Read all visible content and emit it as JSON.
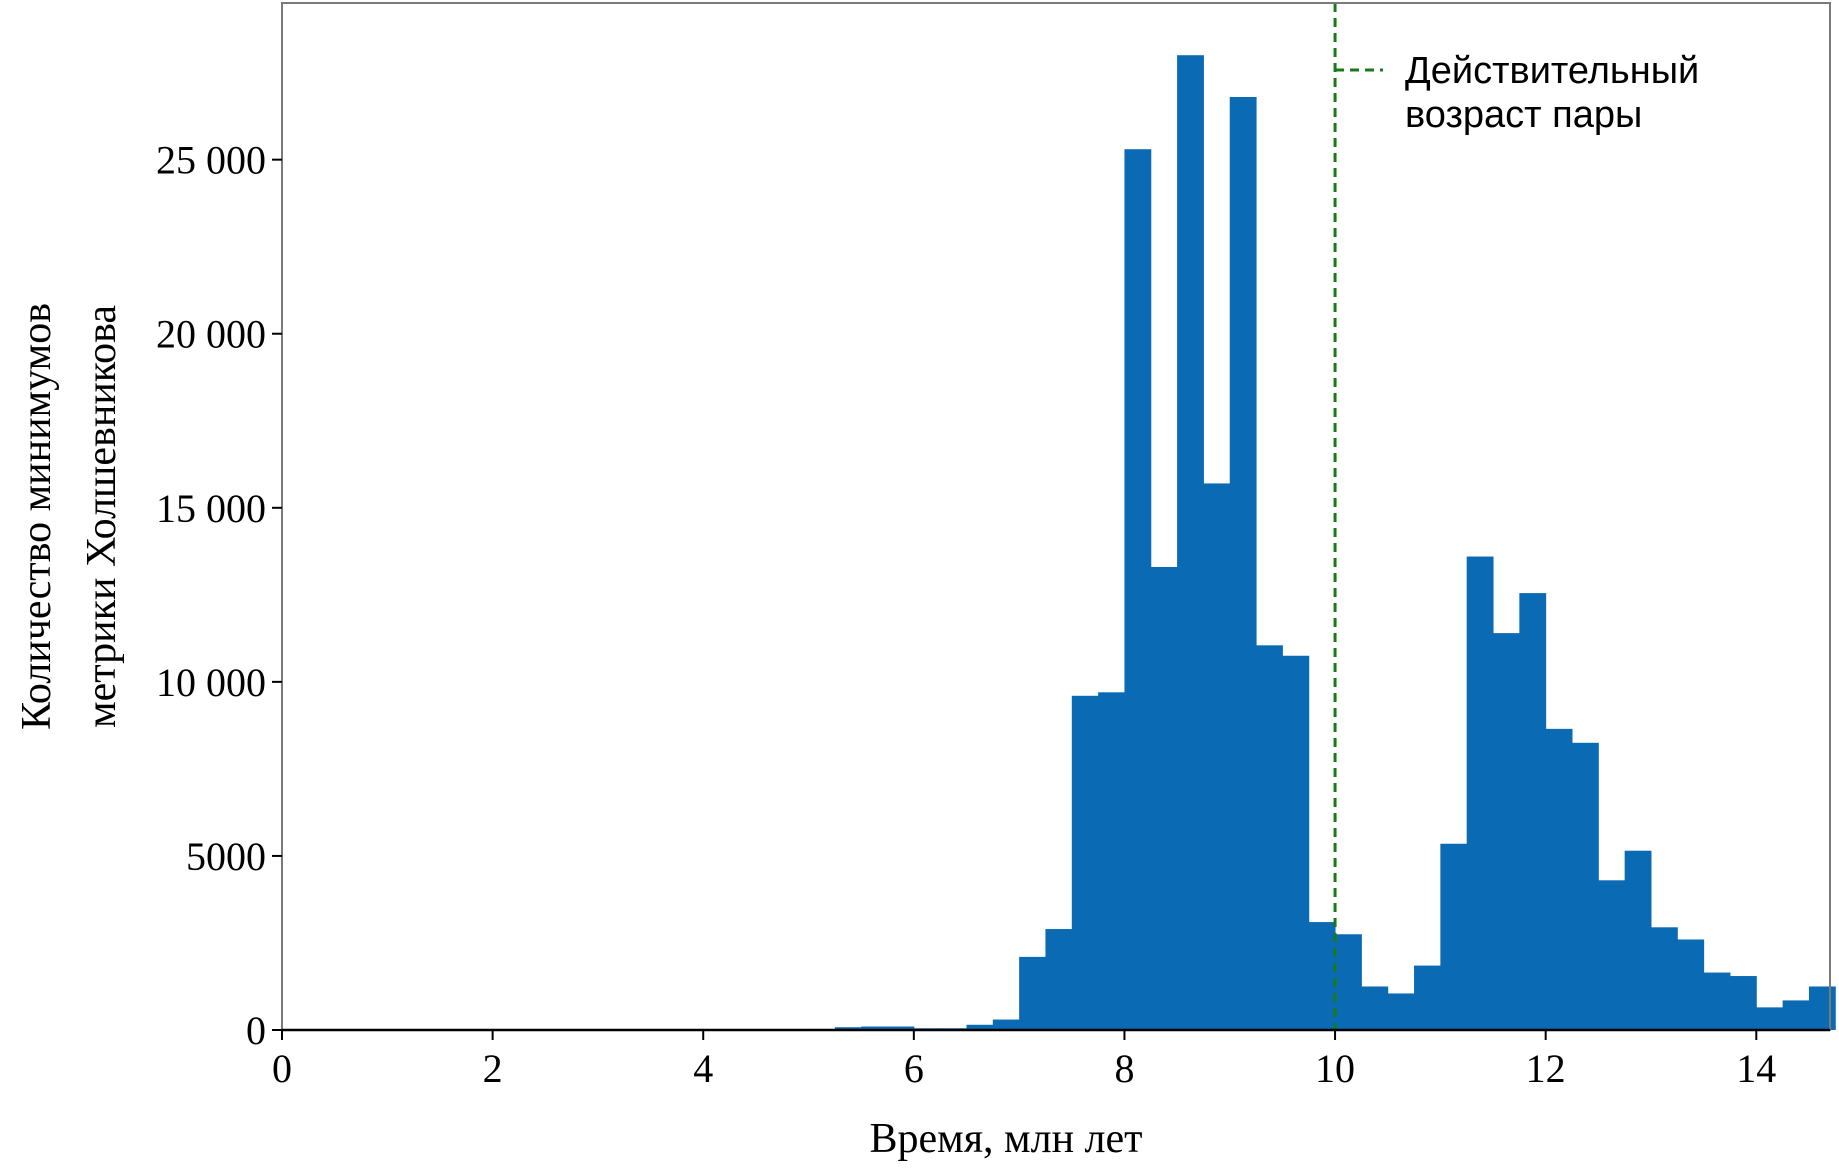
{
  "chart_data": {
    "type": "bar",
    "title": "",
    "xlabel": "Время, млн лет",
    "ylabel_lines": [
      "Количество минимумов",
      "метрики Холшевникова"
    ],
    "xlim": [
      0,
      14.7
    ],
    "ylim": [
      0,
      29500
    ],
    "xticks": [
      0,
      2,
      4,
      6,
      8,
      10,
      12,
      14
    ],
    "xtick_labels": [
      "0",
      "2",
      "4",
      "6",
      "8",
      "10",
      "12",
      "14"
    ],
    "yticks": [
      0,
      5000,
      10000,
      15000,
      20000,
      25000
    ],
    "ytick_labels": [
      "0",
      "5000",
      "10 000",
      "15 000",
      "20 000",
      "25 000"
    ],
    "bin_width": 0.25,
    "bin_start": 5.0,
    "series": [
      {
        "bar_color": "#0a6ab4",
        "values": [
          30,
          80,
          100,
          100,
          50,
          50,
          150,
          300,
          2100,
          2900,
          9600,
          9700,
          25300,
          13300,
          28000,
          15700,
          26800,
          11050,
          10750,
          3100,
          2750,
          1250,
          1050,
          1850,
          5350,
          13600,
          11400,
          12550,
          8650,
          8250,
          4300,
          5150,
          2950,
          2600,
          1650,
          1550,
          650,
          850,
          1250
        ]
      }
    ],
    "reference_line": {
      "x": 10,
      "color": "#1a7a1a",
      "style": "dashed",
      "label_lines": [
        "Действительный",
        "возраст пары"
      ]
    },
    "grid": false,
    "legend_position": "top-right"
  }
}
